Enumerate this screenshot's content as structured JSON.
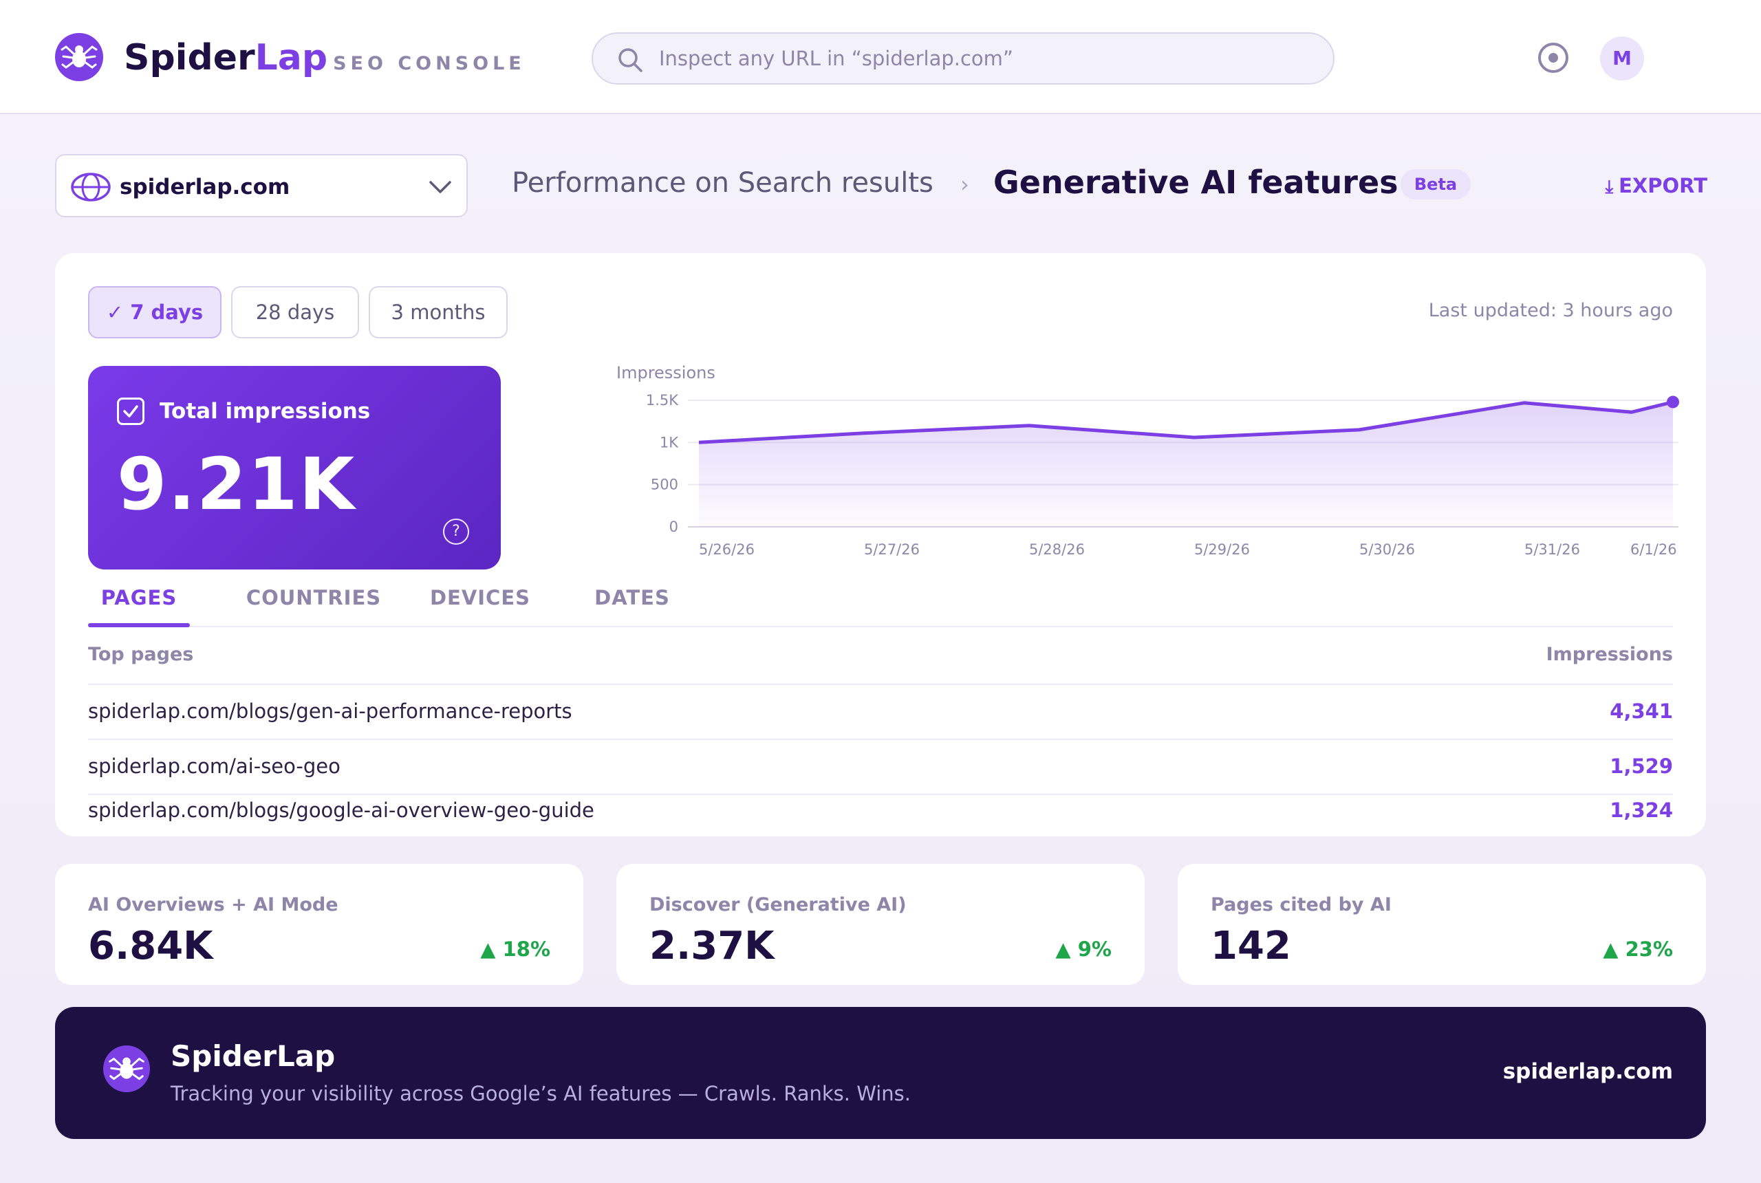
{
  "header": {
    "brand_name_1": "Spider",
    "brand_name_2": "Lap",
    "brand_sub": "SEO CONSOLE",
    "search_placeholder": "Inspect any URL in “spiderlap.com”",
    "avatar_initial": "M"
  },
  "subheader": {
    "property": "spiderlap.com",
    "breadcrumb_parent": "Performance on Search results",
    "breadcrumb_separator": "›",
    "page_title": "Generative AI features",
    "badge": "Beta",
    "export_label": "EXPORT",
    "export_icon": "download-icon"
  },
  "filters": {
    "ranges": [
      {
        "label": "✓ 7 days",
        "active": true
      },
      {
        "label": "28 days",
        "active": false
      },
      {
        "label": "3 months",
        "active": false
      }
    ],
    "last_updated": "Last updated: 3 hours ago"
  },
  "metric": {
    "label": "Total impressions",
    "value": "9.21K",
    "help": "?"
  },
  "chart_data": {
    "type": "area",
    "ylabel": "Impressions",
    "y_ticks": [
      "1.5K",
      "1K",
      "500",
      "0"
    ],
    "x_tick_labels": [
      "5/26/26",
      "5/27/26",
      "5/28/26",
      "5/29/26",
      "5/30/26",
      "5/31/26",
      "6/1/26"
    ],
    "series": [
      {
        "points": [
          {
            "x": 0,
            "y": 1000
          },
          {
            "x": 1,
            "y": 1110
          },
          {
            "x": 2,
            "y": 1200
          },
          {
            "x": 3,
            "y": 1060
          },
          {
            "x": 4,
            "y": 1150
          },
          {
            "x": 5,
            "y": 1470
          },
          {
            "x": 5.65,
            "y": 1360
          },
          {
            "x": 5.9,
            "y": 1480
          }
        ]
      }
    ],
    "ylim": [
      0,
      1500
    ],
    "color": "#7b3fe4"
  },
  "tabs": [
    {
      "label": "PAGES",
      "active": true
    },
    {
      "label": "COUNTRIES",
      "active": false
    },
    {
      "label": "DEVICES",
      "active": false
    },
    {
      "label": "DATES",
      "active": false
    }
  ],
  "table": {
    "col_page": "Top pages",
    "col_impressions": "Impressions",
    "rows": [
      {
        "url": "spiderlap.com/blogs/gen-ai-performance-reports",
        "impressions": "4,341"
      },
      {
        "url": "spiderlap.com/ai-seo-geo",
        "impressions": "1,529"
      },
      {
        "url": "spiderlap.com/blogs/google-ai-overview-geo-guide",
        "impressions": "1,324"
      }
    ]
  },
  "stats": [
    {
      "label": "AI Overviews + AI Mode",
      "value": "6.84K",
      "delta": "▲ 18%"
    },
    {
      "label": "Discover (Generative AI)",
      "value": "2.37K",
      "delta": "▲ 9%"
    },
    {
      "label": "Pages cited by AI",
      "value": "142",
      "delta": "▲ 23%"
    }
  ],
  "footer": {
    "name": "SpiderLap",
    "tagline": "Tracking your visibility across Google’s AI features — Crawls. Ranks. Wins.",
    "site": "spiderlap.com"
  },
  "colors": {
    "accent": "#7b3fe4",
    "dark": "#1e1042",
    "positive": "#1fa54a"
  }
}
